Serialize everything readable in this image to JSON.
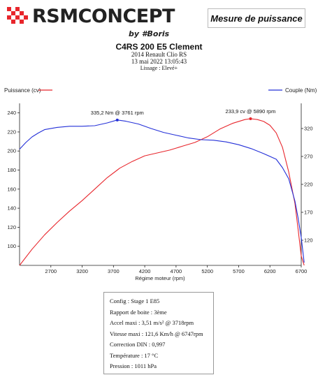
{
  "brand": {
    "name": "RSMCONCEPT",
    "tagline": "by #Boris"
  },
  "badge": "Mesure de puissance",
  "header": {
    "title": "C4RS 200 E5 Clement",
    "vehicle": "2014 Renault Clio RS",
    "datetime": "13 mai 2022 13:05:43",
    "smoothing": "Lissage : Elevé+"
  },
  "chart_data": {
    "type": "line",
    "xlabel": "Régime moteur (rpm)",
    "xlim": [
      2200,
      6700
    ],
    "xticks": [
      2700,
      3200,
      3700,
      4200,
      4700,
      5200,
      5700,
      6200,
      6700
    ],
    "grid": false,
    "legend_placement": "top",
    "series": [
      {
        "name": "Puissance (cv)",
        "axis": "left",
        "color": "#e8262c",
        "ylim": [
          80,
          250
        ],
        "yticks": [
          100,
          120,
          140,
          160,
          180,
          200,
          220,
          240
        ],
        "x": [
          2200,
          2400,
          2600,
          2800,
          3000,
          3200,
          3400,
          3600,
          3761,
          3800,
          4000,
          4200,
          4400,
          4600,
          4800,
          5000,
          5200,
          5400,
          5600,
          5800,
          5890,
          6000,
          6100,
          6200,
          6300,
          6400,
          6500,
          6600,
          6650,
          6700,
          6747
        ],
        "values": [
          80,
          97,
          112,
          125,
          137,
          148,
          160,
          172,
          180,
          182,
          189,
          195,
          198,
          201,
          205,
          209,
          215,
          223,
          229,
          233,
          233.9,
          233,
          231,
          227,
          219,
          204,
          178,
          145,
          118,
          90,
          80
        ]
      },
      {
        "name": "Couple (Nm)",
        "axis": "right",
        "color": "#2430d8",
        "ylim": [
          75,
          365
        ],
        "yticks": [
          120,
          170,
          220,
          270,
          320
        ],
        "x": [
          2200,
          2300,
          2400,
          2500,
          2600,
          2800,
          3000,
          3200,
          3400,
          3600,
          3761,
          3900,
          4100,
          4300,
          4500,
          4700,
          4900,
          5100,
          5300,
          5500,
          5700,
          5900,
          6100,
          6300,
          6400,
          6500,
          6600,
          6650,
          6700,
          6747
        ],
        "values": [
          283,
          295,
          305,
          312,
          318,
          322,
          324,
          324,
          325,
          330,
          335.2,
          333,
          328,
          320,
          313,
          308,
          303,
          300,
          299,
          296,
          291,
          284,
          275,
          265,
          250,
          230,
          190,
          160,
          125,
          80
        ]
      }
    ],
    "annotations": [
      {
        "series": "Puissance (cv)",
        "x": 5890,
        "y": 233.9,
        "text": "233,9 cv @ 5890 rpm"
      },
      {
        "series": "Couple (Nm)",
        "x": 3761,
        "y": 335.2,
        "text": "335,2 Nm @ 3761 rpm"
      }
    ]
  },
  "info": [
    "Config : Stage 1 E85",
    "Rapport de boite : 3ème",
    "Accel maxi : 3,51 m/s² @ 3718rpm",
    "Vitesse maxi : 121,6 Km/h @ 6747rpm",
    "Correction DIN : 0,997",
    "Température : 17 °C",
    "Pression : 1011 hPa"
  ]
}
